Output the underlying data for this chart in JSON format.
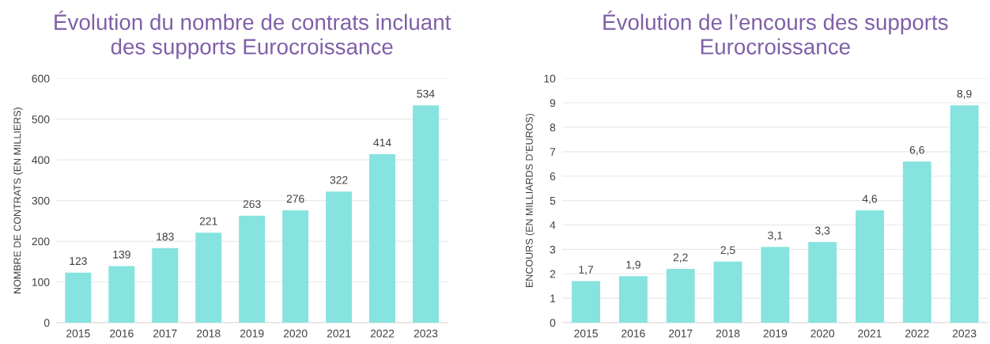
{
  "chart_data": [
    {
      "type": "bar",
      "title": "Évolution du nombre de contrats incluant\ndes supports Eurocroissance",
      "ylabel": "NOMBRE DE CONTRATS (EN MILLIERS)",
      "categories": [
        "2015",
        "2016",
        "2017",
        "2018",
        "2019",
        "2020",
        "2021",
        "2022",
        "2023"
      ],
      "values": [
        123,
        139,
        183,
        221,
        263,
        276,
        322,
        414,
        534
      ],
      "color": "#86e3df",
      "ylim": [
        0,
        600
      ],
      "yticks": [
        0,
        100,
        200,
        300,
        400,
        500,
        600
      ],
      "grid": "y",
      "data_labels": true
    },
    {
      "type": "bar",
      "title": "Évolution de l’encours des supports\nEurocroissance",
      "ylabel": "ENCOURS (EN MILLIARDS D’EUROS)",
      "categories": [
        "2015",
        "2016",
        "2017",
        "2018",
        "2019",
        "2020",
        "2021",
        "2022",
        "2023"
      ],
      "values": [
        1.7,
        1.9,
        2.2,
        2.5,
        3.1,
        3.3,
        4.6,
        6.6,
        8.9
      ],
      "color": "#86e3df",
      "value_labels": [
        "1,7",
        "1,9",
        "2,2",
        "2,5",
        "3,1",
        "3,3",
        "4,6",
        "6,6",
        "8,9"
      ],
      "ylim": [
        0,
        10
      ],
      "yticks": [
        0,
        1,
        2,
        3,
        4,
        5,
        6,
        7,
        8,
        9,
        10
      ],
      "grid": "y"
    }
  ]
}
